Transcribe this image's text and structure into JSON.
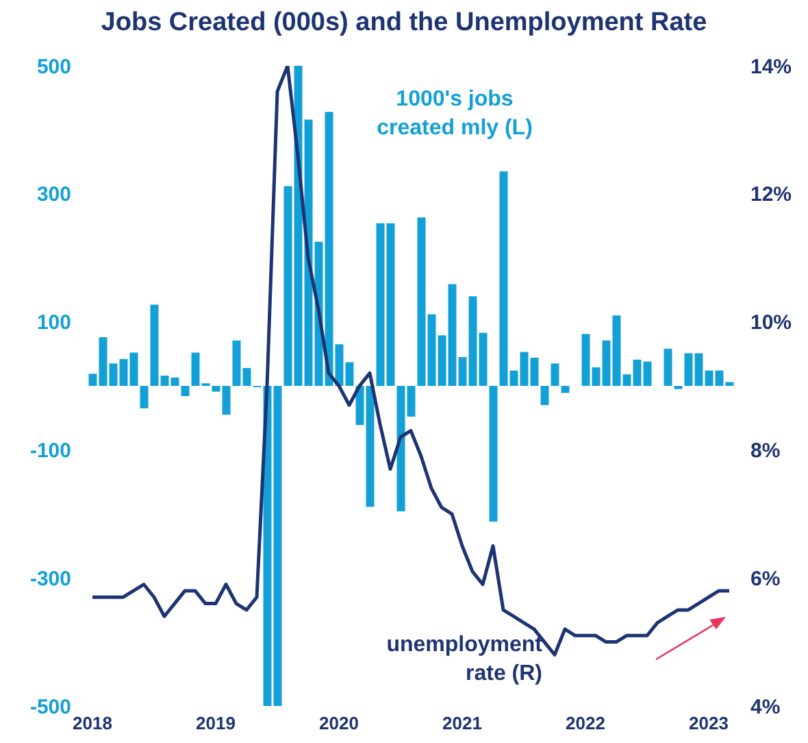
{
  "chart_data": {
    "type": "bar",
    "title": "Jobs Created (000s) and the Unemployment Rate",
    "x": [
      "2018-01",
      "2018-02",
      "2018-03",
      "2018-04",
      "2018-05",
      "2018-06",
      "2018-07",
      "2018-08",
      "2018-09",
      "2018-10",
      "2018-11",
      "2018-12",
      "2019-01",
      "2019-02",
      "2019-03",
      "2019-04",
      "2019-05",
      "2019-06",
      "2019-07",
      "2019-08",
      "2019-09",
      "2019-10",
      "2019-11",
      "2019-12",
      "2020-01",
      "2020-02",
      "2020-03",
      "2020-04",
      "2020-05",
      "2020-06",
      "2020-07",
      "2020-08",
      "2020-09",
      "2020-10",
      "2020-11",
      "2020-12",
      "2021-01",
      "2021-02",
      "2021-03",
      "2021-04",
      "2021-05",
      "2021-06",
      "2021-07",
      "2021-08",
      "2021-09",
      "2021-10",
      "2021-11",
      "2021-12",
      "2022-01",
      "2022-02",
      "2022-03",
      "2022-04",
      "2022-05",
      "2022-06",
      "2022-07",
      "2022-08",
      "2022-09",
      "2022-10",
      "2022-11",
      "2022-12",
      "2023-01",
      "2023-02",
      "2023-03"
    ],
    "series": [
      {
        "name": "1000's jobs created mly (L)",
        "color": "#13a0d7",
        "values": [
          19,
          76,
          35,
          42,
          52,
          -35,
          127,
          16,
          13,
          -16,
          52,
          4,
          -9,
          -45,
          71,
          28,
          -2,
          -500,
          -500,
          312,
          500,
          416,
          225,
          428,
          65,
          37,
          -61,
          -189,
          254,
          254,
          -196,
          -48,
          263,
          112,
          79,
          159,
          45,
          140,
          83,
          -212,
          335,
          24,
          53,
          44,
          -30,
          35,
          -11,
          0,
          81,
          29,
          71,
          110,
          18,
          41,
          38,
          0,
          58,
          -5,
          51,
          51,
          24,
          24,
          6
        ]
      },
      {
        "name": "unemployment rate (R)",
        "type": "line",
        "axis": "y2",
        "color": "#1e3472",
        "values": [
          5.7,
          5.7,
          5.7,
          5.7,
          5.8,
          5.9,
          5.7,
          5.4,
          5.6,
          5.8,
          5.8,
          5.6,
          5.6,
          5.9,
          5.6,
          5.5,
          5.7,
          9.0,
          13.6,
          14.0,
          12.6,
          11.0,
          10.2,
          9.2,
          9.0,
          8.7,
          9.0,
          9.2,
          8.4,
          7.7,
          8.2,
          8.3,
          7.9,
          7.4,
          7.1,
          7.0,
          6.5,
          6.1,
          5.9,
          6.5,
          5.5,
          5.4,
          5.3,
          5.2,
          5.0,
          4.8,
          5.2,
          5.1,
          5.1,
          5.1,
          5.0,
          5.0,
          5.1,
          5.1,
          5.1,
          5.3,
          5.4,
          5.5,
          5.5,
          5.6,
          5.7,
          5.8,
          5.8
        ]
      }
    ],
    "xlim": [
      "2017-12",
      "2023-04"
    ],
    "xticks": [
      {
        "value": "2018-01",
        "label": "2018"
      },
      {
        "value": "2019-01",
        "label": "2019"
      },
      {
        "value": "2020-01",
        "label": "2020"
      },
      {
        "value": "2021-01",
        "label": "2021"
      },
      {
        "value": "2022-01",
        "label": "2022"
      },
      {
        "value": "2023-01",
        "label": "2023"
      }
    ],
    "ylim": [
      -500,
      500
    ],
    "yticks": [
      -500,
      -300,
      -100,
      100,
      300,
      500
    ],
    "y2lim": [
      4,
      14
    ],
    "y2ticks": [
      {
        "value": 4,
        "label": "4%"
      },
      {
        "value": 6,
        "label": "6%"
      },
      {
        "value": 8,
        "label": "8%"
      },
      {
        "value": 10,
        "label": "10%"
      },
      {
        "value": 12,
        "label": "12%"
      },
      {
        "value": 14,
        "label": "14%"
      }
    ],
    "grid": false,
    "legend": false,
    "marker": "none",
    "line_style": "solid"
  }
}
